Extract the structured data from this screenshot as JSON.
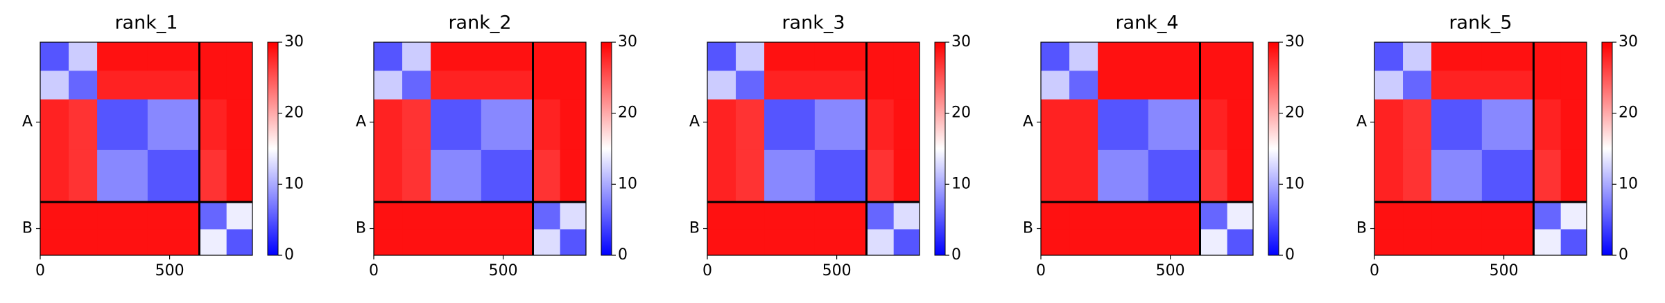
{
  "chart_data": [
    {
      "type": "heatmap",
      "title": "rank_1",
      "colormap": "bwr",
      "edges": [
        0,
        110,
        220,
        415,
        615,
        720,
        820
      ],
      "z": [
        [
          5,
          12,
          29,
          29,
          29,
          29
        ],
        [
          12,
          6,
          28,
          28,
          29,
          29
        ],
        [
          28,
          27,
          5,
          8,
          28,
          29
        ],
        [
          28,
          27,
          8,
          5,
          27,
          29
        ],
        [
          29,
          29,
          29,
          29,
          6,
          14
        ],
        [
          29,
          29,
          29,
          29,
          14,
          5
        ]
      ],
      "xlim": [
        0,
        820
      ],
      "ylim": [
        820,
        0
      ],
      "xticks": [
        0,
        500
      ],
      "yticks": [
        {
          "value": 307.5,
          "label": "A"
        },
        {
          "value": 717.5,
          "label": "B"
        }
      ],
      "chain_boundaries": [
        615
      ],
      "clim": [
        0,
        30
      ],
      "cticks": [
        0,
        10,
        20,
        30
      ]
    },
    {
      "type": "heatmap",
      "title": "rank_2",
      "colormap": "bwr",
      "edges": [
        0,
        110,
        220,
        415,
        615,
        720,
        820
      ],
      "z": [
        [
          5,
          12,
          29,
          29,
          29,
          29
        ],
        [
          12,
          6,
          28,
          28,
          29,
          29
        ],
        [
          28,
          27,
          5,
          8,
          28,
          29
        ],
        [
          28,
          27,
          8,
          5,
          27,
          29
        ],
        [
          29,
          29,
          29,
          29,
          6,
          13
        ],
        [
          29,
          29,
          29,
          29,
          13,
          5
        ]
      ],
      "xlim": [
        0,
        820
      ],
      "ylim": [
        820,
        0
      ],
      "xticks": [
        0,
        500
      ],
      "yticks": [
        {
          "value": 307.5,
          "label": "A"
        },
        {
          "value": 717.5,
          "label": "B"
        }
      ],
      "chain_boundaries": [
        615
      ],
      "clim": [
        0,
        30
      ],
      "cticks": [
        0,
        10,
        20,
        30
      ]
    },
    {
      "type": "heatmap",
      "title": "rank_3",
      "colormap": "bwr",
      "edges": [
        0,
        110,
        220,
        415,
        615,
        720,
        820
      ],
      "z": [
        [
          5,
          12,
          29,
          29,
          29,
          29
        ],
        [
          12,
          6,
          28,
          28,
          29,
          29
        ],
        [
          28,
          27,
          5,
          8,
          28,
          29
        ],
        [
          28,
          27,
          8,
          5,
          27,
          29
        ],
        [
          29,
          29,
          29,
          29,
          6,
          13
        ],
        [
          29,
          29,
          29,
          29,
          13,
          5
        ]
      ],
      "xlim": [
        0,
        820
      ],
      "ylim": [
        820,
        0
      ],
      "xticks": [
        0,
        500
      ],
      "yticks": [
        {
          "value": 307.5,
          "label": "A"
        },
        {
          "value": 717.5,
          "label": "B"
        }
      ],
      "chain_boundaries": [
        615
      ],
      "clim": [
        0,
        30
      ],
      "cticks": [
        0,
        10,
        20,
        30
      ]
    },
    {
      "type": "heatmap",
      "title": "rank_4",
      "colormap": "bwr",
      "edges": [
        0,
        110,
        220,
        415,
        615,
        720,
        820
      ],
      "z": [
        [
          5,
          12,
          29,
          29,
          29,
          29
        ],
        [
          12,
          6,
          29,
          29,
          29,
          29
        ],
        [
          28,
          28,
          5,
          8,
          28,
          29
        ],
        [
          28,
          28,
          8,
          5,
          27,
          29
        ],
        [
          29,
          29,
          29,
          29,
          6,
          14
        ],
        [
          29,
          29,
          29,
          29,
          14,
          5
        ]
      ],
      "xlim": [
        0,
        820
      ],
      "ylim": [
        820,
        0
      ],
      "xticks": [
        0,
        500
      ],
      "yticks": [
        {
          "value": 307.5,
          "label": "A"
        },
        {
          "value": 717.5,
          "label": "B"
        }
      ],
      "chain_boundaries": [
        615
      ],
      "clim": [
        0,
        30
      ],
      "cticks": [
        0,
        10,
        20,
        30
      ]
    },
    {
      "type": "heatmap",
      "title": "rank_5",
      "colormap": "bwr",
      "edges": [
        0,
        110,
        220,
        415,
        615,
        720,
        820
      ],
      "z": [
        [
          5,
          12,
          29,
          29,
          29,
          29
        ],
        [
          12,
          6,
          28,
          28,
          29,
          29
        ],
        [
          28,
          27,
          5,
          8,
          28,
          29
        ],
        [
          28,
          27,
          8,
          5,
          27,
          29
        ],
        [
          29,
          29,
          29,
          29,
          6,
          14
        ],
        [
          29,
          29,
          29,
          29,
          14,
          5
        ]
      ],
      "xlim": [
        0,
        820
      ],
      "ylim": [
        820,
        0
      ],
      "xticks": [
        0,
        500
      ],
      "yticks": [
        {
          "value": 307.5,
          "label": "A"
        },
        {
          "value": 717.5,
          "label": "B"
        }
      ],
      "chain_boundaries": [
        615
      ],
      "clim": [
        0,
        30
      ],
      "cticks": [
        0,
        10,
        20,
        30
      ]
    }
  ]
}
